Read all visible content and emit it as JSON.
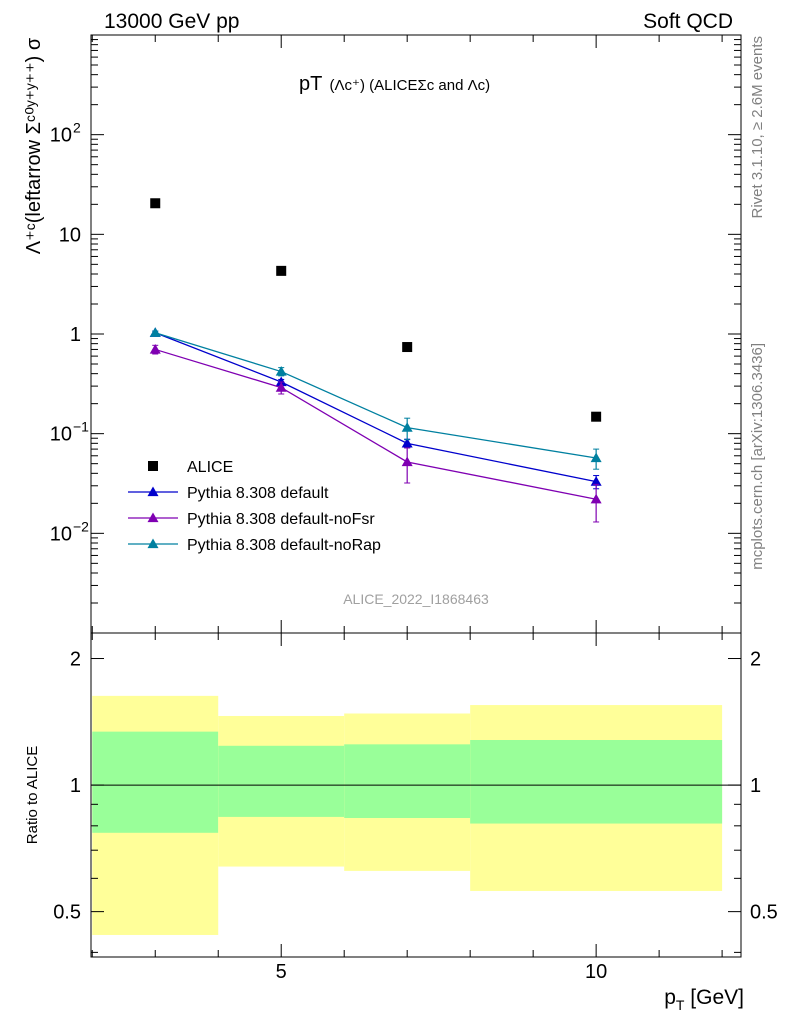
{
  "header": {
    "left": "13000 GeV pp",
    "right": "Soft QCD"
  },
  "side": {
    "rivet": "Rivet 3.1.10, ≥ 2.6M events",
    "mcplots": "mcplots.cern.ch [arXiv:1306.3436]"
  },
  "plot": {
    "title_main": "pT",
    "title_sub": "(Λc⁺) (ALICEΣc and Λc)",
    "ylabel": "Λ⁺ᶜ(leftarrow Σᶜ⁰ʸ⁺ʸ⁺⁺) σ",
    "analysis_id": "ALICE_2022_I1868463",
    "ratio_ylabel": "Ratio to ALICE",
    "xlabel": "p_T [GeV]"
  },
  "colors": {
    "alice": "#000000",
    "default": "#0000cc",
    "noFsr": "#7f00b2",
    "noRap": "#0080a0",
    "band_inner": "#99ff99",
    "band_outer": "#ffff99"
  },
  "chart_data": [
    {
      "type": "scatter",
      "title": "pT(Λc⁺) (ALICEΣc and Λc)",
      "xlabel": "p_T [GeV]",
      "ylabel": "Λ⁺ᶜ(leftarrow Σᶜ⁰ʸ⁺ʸ⁺⁺) σ",
      "x": [
        3,
        5,
        7,
        10
      ],
      "xlim": [
        1.98,
        12.3
      ],
      "ylim": [
        0.001,
        1000
      ],
      "y_scale": "log",
      "yticks": [
        {
          "v": 0.01,
          "mant": "10",
          "exp": "−2"
        },
        {
          "v": 0.1,
          "mant": "10",
          "exp": "−1"
        },
        {
          "v": 1,
          "mant": "1",
          "exp": ""
        },
        {
          "v": 10,
          "mant": "10",
          "exp": ""
        },
        {
          "v": 100,
          "mant": "10",
          "exp": "2"
        }
      ],
      "legend_position": "lower-left",
      "series": [
        {
          "key": "alice",
          "name": "ALICE",
          "marker": "square",
          "values": [
            20.5,
            4.3,
            0.74,
            0.148
          ],
          "err": [
            0,
            0,
            0,
            0
          ]
        },
        {
          "key": "default",
          "name": "Pythia 8.308 default",
          "marker": "triangle",
          "values": [
            1.03,
            0.33,
            0.08,
            0.033
          ],
          "err": [
            0.04,
            0.02,
            0.008,
            0.005
          ]
        },
        {
          "key": "noFsr",
          "name": "Pythia 8.308 default-noFsr",
          "marker": "triangle",
          "values": [
            0.7,
            0.29,
            0.052,
            0.022
          ],
          "err": [
            0.07,
            0.04,
            0.02,
            0.009
          ]
        },
        {
          "key": "noRap",
          "name": "Pythia 8.308 default-noRap",
          "marker": "triangle",
          "values": [
            1.03,
            0.42,
            0.115,
            0.057
          ],
          "err": [
            0.04,
            0.04,
            0.028,
            0.013
          ]
        }
      ]
    },
    {
      "type": "area",
      "title": "",
      "xlabel": "p_T [GeV]",
      "ylabel": "Ratio to ALICE",
      "xlim": [
        1.98,
        12.3
      ],
      "ylim": [
        0.39,
        2.3
      ],
      "y_scale": "log",
      "yticks": [
        {
          "v": 0.5,
          "label": "0.5"
        },
        {
          "v": 1,
          "label": "1"
        },
        {
          "v": 2,
          "label": "2"
        }
      ],
      "xticks": [
        {
          "v": 5,
          "label": "5"
        },
        {
          "v": 10,
          "label": "10"
        }
      ],
      "bins": [
        {
          "x0": 2,
          "x1": 4,
          "inner": [
            0.77,
            1.34
          ],
          "outer": [
            0.44,
            1.63
          ]
        },
        {
          "x0": 4,
          "x1": 6,
          "inner": [
            0.84,
            1.24
          ],
          "outer": [
            0.64,
            1.46
          ]
        },
        {
          "x0": 6,
          "x1": 8,
          "inner": [
            0.835,
            1.25
          ],
          "outer": [
            0.625,
            1.48
          ]
        },
        {
          "x0": 8,
          "x1": 12,
          "inner": [
            0.81,
            1.28
          ],
          "outer": [
            0.56,
            1.55
          ]
        }
      ],
      "reference_line": 1
    }
  ]
}
